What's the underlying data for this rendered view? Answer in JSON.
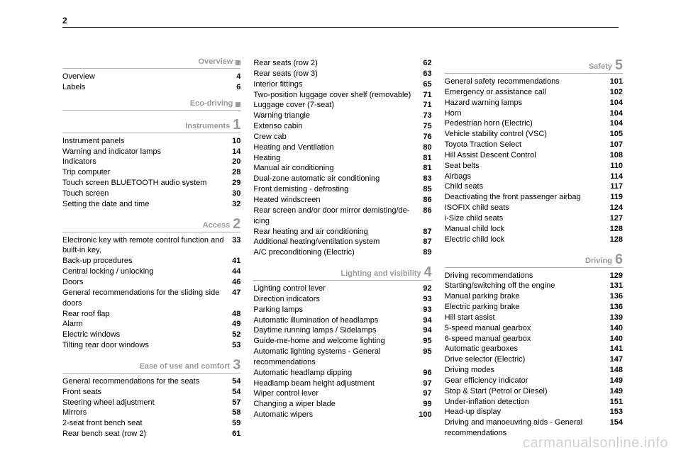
{
  "page_number": "2",
  "watermark": "carmanualsonline.info",
  "columns": [
    [
      {
        "type": "header",
        "title": "Overview",
        "symbol": "square"
      },
      {
        "type": "row",
        "label": "Overview",
        "page": "4"
      },
      {
        "type": "row",
        "label": "Labels",
        "page": "6"
      },
      {
        "type": "header",
        "title": "Eco-driving",
        "symbol": "square"
      },
      {
        "type": "header",
        "title": "Instruments",
        "num": "1"
      },
      {
        "type": "row",
        "label": "Instrument panels",
        "page": "10"
      },
      {
        "type": "row",
        "label": "Warning and indicator lamps",
        "page": "14"
      },
      {
        "type": "row",
        "label": "Indicators",
        "page": "20"
      },
      {
        "type": "row",
        "label": "Trip computer",
        "page": "28"
      },
      {
        "type": "row",
        "label": "Touch screen BLUETOOTH audio system",
        "page": "29"
      },
      {
        "type": "row",
        "label": "Touch screen",
        "page": "30"
      },
      {
        "type": "row",
        "label": "Setting the date and time",
        "page": "32"
      },
      {
        "type": "header",
        "title": "Access",
        "num": "2"
      },
      {
        "type": "row",
        "label": "Electronic key with remote control function and built-in key,",
        "page": "33"
      },
      {
        "type": "row",
        "label": "Back-up procedures",
        "page": "41"
      },
      {
        "type": "row",
        "label": "Central locking / unlocking",
        "page": "44"
      },
      {
        "type": "row",
        "label": "Doors",
        "page": "46"
      },
      {
        "type": "row",
        "label": "General recommendations for the sliding side doors",
        "page": "47"
      },
      {
        "type": "row",
        "label": "Rear roof flap",
        "page": "48"
      },
      {
        "type": "row",
        "label": "Alarm",
        "page": "49"
      },
      {
        "type": "row",
        "label": "Electric windows",
        "page": "52"
      },
      {
        "type": "row",
        "label": "Tilting rear door windows",
        "page": "53"
      },
      {
        "type": "header",
        "title": "Ease of use and comfort",
        "num": "3"
      },
      {
        "type": "row",
        "label": "General recommendations for the seats",
        "page": "54"
      },
      {
        "type": "row",
        "label": "Front seats",
        "page": "54"
      },
      {
        "type": "row",
        "label": "Steering wheel adjustment",
        "page": "57"
      },
      {
        "type": "row",
        "label": "Mirrors",
        "page": "58"
      },
      {
        "type": "row",
        "label": "2-seat front bench seat",
        "page": "59"
      },
      {
        "type": "row",
        "label": "Rear bench seat (row 2)",
        "page": "61"
      }
    ],
    [
      {
        "type": "row",
        "label": "Rear seats (row 2)",
        "page": "62"
      },
      {
        "type": "row",
        "label": "Rear seats (row 3)",
        "page": "63"
      },
      {
        "type": "row",
        "label": "Interior fittings",
        "page": "65"
      },
      {
        "type": "row",
        "label": "Two-position luggage cover shelf (removable)",
        "page": "71"
      },
      {
        "type": "row",
        "label": "Luggage cover (7-seat)",
        "page": "71"
      },
      {
        "type": "row",
        "label": "Warning triangle",
        "page": "73"
      },
      {
        "type": "row",
        "label": "Extenso cabin",
        "page": "75"
      },
      {
        "type": "row",
        "label": "Crew cab",
        "page": "76"
      },
      {
        "type": "row",
        "label": "Heating and Ventilation",
        "page": "80"
      },
      {
        "type": "row",
        "label": "Heating",
        "page": "81"
      },
      {
        "type": "row",
        "label": "Manual air conditioning",
        "page": "81"
      },
      {
        "type": "row",
        "label": "Dual-zone automatic air conditioning",
        "page": "83"
      },
      {
        "type": "row",
        "label": "Front demisting - defrosting",
        "page": "85"
      },
      {
        "type": "row",
        "label": "Heated windscreen",
        "page": "86"
      },
      {
        "type": "row",
        "label": "Rear screen and/or door mirror demisting/de-icing",
        "page": "86"
      },
      {
        "type": "row",
        "label": "Rear heating and air conditioning",
        "page": "87"
      },
      {
        "type": "row",
        "label": "Additional heating/ventilation system",
        "page": "87"
      },
      {
        "type": "row",
        "label": "A/C preconditioning (Electric)",
        "page": "89"
      },
      {
        "type": "header",
        "title": "Lighting and visibility",
        "num": "4"
      },
      {
        "type": "row",
        "label": "Lighting control lever",
        "page": "92"
      },
      {
        "type": "row",
        "label": "Direction indicators",
        "page": "93"
      },
      {
        "type": "row",
        "label": "Parking lamps",
        "page": "93"
      },
      {
        "type": "row",
        "label": "Automatic illumination of headlamps",
        "page": "94"
      },
      {
        "type": "row",
        "label": "Daytime running lamps / Sidelamps",
        "page": "94"
      },
      {
        "type": "row",
        "label": "Guide-me-home and welcome lighting",
        "page": "95"
      },
      {
        "type": "row",
        "label": "Automatic lighting systems - General recommendations",
        "page": "95"
      },
      {
        "type": "row",
        "label": "Automatic headlamp dipping",
        "page": "96"
      },
      {
        "type": "row",
        "label": "Headlamp beam height adjustment",
        "page": "97"
      },
      {
        "type": "row",
        "label": "Wiper control lever",
        "page": "97"
      },
      {
        "type": "row",
        "label": "Changing a wiper blade",
        "page": "99"
      },
      {
        "type": "row",
        "label": "Automatic wipers",
        "page": "100"
      }
    ],
    [
      {
        "type": "header",
        "title": "Safety",
        "num": "5"
      },
      {
        "type": "row",
        "label": "General safety recommendations",
        "page": "101"
      },
      {
        "type": "row",
        "label": "Emergency or assistance call",
        "page": "102"
      },
      {
        "type": "row",
        "label": "Hazard warning lamps",
        "page": "104"
      },
      {
        "type": "row",
        "label": "Horn",
        "page": "104"
      },
      {
        "type": "row",
        "label": "Pedestrian horn (Electric)",
        "page": "104"
      },
      {
        "type": "row",
        "label": "Vehicle stability control (VSC)",
        "page": "105"
      },
      {
        "type": "row",
        "label": "Toyota Traction Select",
        "page": "107"
      },
      {
        "type": "row",
        "label": "Hill Assist Descent Control",
        "page": "108"
      },
      {
        "type": "row",
        "label": "Seat belts",
        "page": "110"
      },
      {
        "type": "row",
        "label": "Airbags",
        "page": "114"
      },
      {
        "type": "row",
        "label": "Child seats",
        "page": "117"
      },
      {
        "type": "row",
        "label": "Deactivating the front passenger airbag",
        "page": "119"
      },
      {
        "type": "row",
        "label": "ISOFIX child seats",
        "page": "124"
      },
      {
        "type": "row",
        "label": "i-Size child seats",
        "page": "127"
      },
      {
        "type": "row",
        "label": "Manual child lock",
        "page": "128"
      },
      {
        "type": "row",
        "label": "Electric child lock",
        "page": "128"
      },
      {
        "type": "header",
        "title": "Driving",
        "num": "6"
      },
      {
        "type": "row",
        "label": "Driving recommendations",
        "page": "129"
      },
      {
        "type": "row",
        "label": "Starting/switching off the engine",
        "page": "131"
      },
      {
        "type": "row",
        "label": "Manual parking brake",
        "page": "136"
      },
      {
        "type": "row",
        "label": "Electric parking brake",
        "page": "136"
      },
      {
        "type": "row",
        "label": "Hill start assist",
        "page": "139"
      },
      {
        "type": "row",
        "label": "5-speed manual gearbox",
        "page": "140"
      },
      {
        "type": "row",
        "label": "6-speed manual gearbox",
        "page": "140"
      },
      {
        "type": "row",
        "label": "Automatic gearboxes",
        "page": "141"
      },
      {
        "type": "row",
        "label": "Drive selector (Electric)",
        "page": "147"
      },
      {
        "type": "row",
        "label": "Driving modes",
        "page": "148"
      },
      {
        "type": "row",
        "label": "Gear efficiency indicator",
        "page": "149"
      },
      {
        "type": "row",
        "label": "Stop & Start (Petrol or Diesel)",
        "page": "149"
      },
      {
        "type": "row",
        "label": "Under-inflation detection",
        "page": "151"
      },
      {
        "type": "row",
        "label": "Head-up display",
        "page": "153"
      },
      {
        "type": "row",
        "label": "Driving and manoeuvring aids - General recommendations",
        "page": "154"
      }
    ]
  ]
}
